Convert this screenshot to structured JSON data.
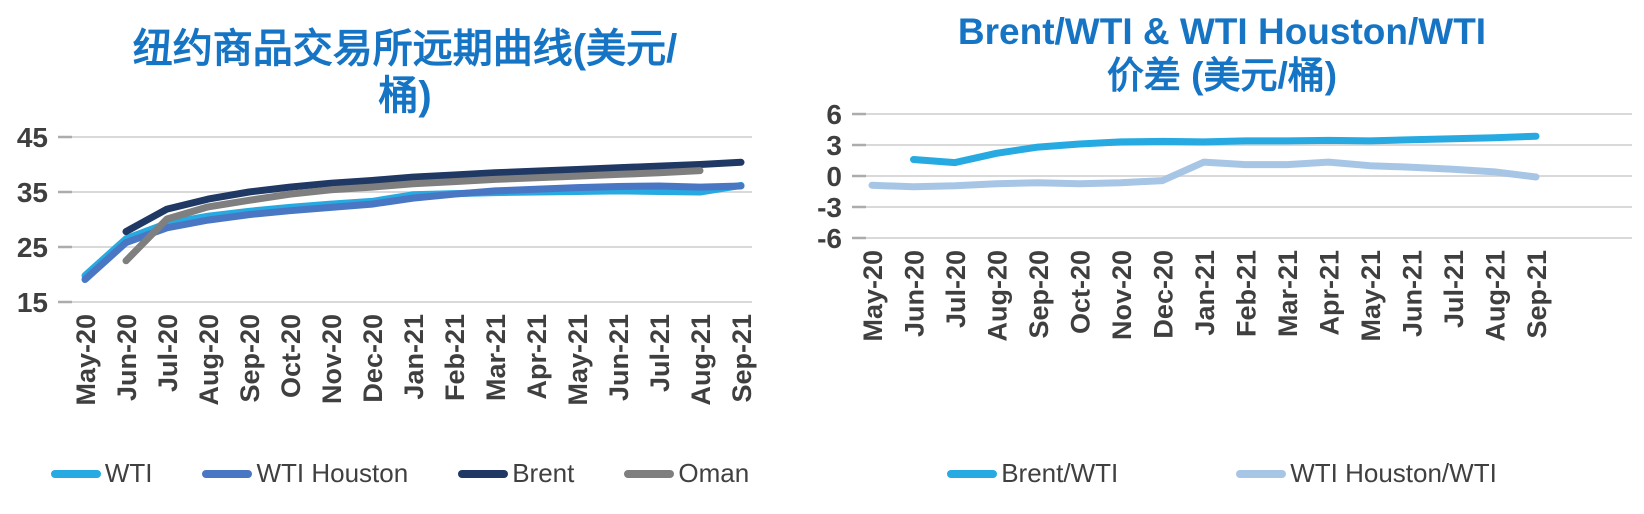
{
  "chart_data": [
    {
      "type": "line",
      "title": "纽约商品交易所远期曲线(美元/桶)",
      "title_lines": [
        "纽约商品交易所远期曲线(美元/",
        "桶)"
      ],
      "title_color": "#1674C4",
      "ylim": [
        15,
        45
      ],
      "y_ticks": [
        45,
        35,
        25,
        15
      ],
      "grid": true,
      "legend_position": "bottom",
      "categories": [
        "May-20",
        "Jun-20",
        "Jul-20",
        "Aug-20",
        "Sep-20",
        "Oct-20",
        "Nov-20",
        "Dec-20",
        "Jan-21",
        "Feb-21",
        "Mar-21",
        "Apr-21",
        "May-21",
        "Jun-21",
        "Jul-21",
        "Aug-21",
        "Sep-21"
      ],
      "series": [
        {
          "name": "WTI",
          "color": "#27AAE1",
          "values": [
            19.8,
            26.5,
            29.3,
            30.6,
            31.5,
            32.2,
            32.8,
            33.3,
            34.5,
            34.7,
            34.9,
            35.0,
            35.1,
            35.2,
            35.1,
            35.0,
            36.2
          ]
        },
        {
          "name": "WTI Houston",
          "color": "#4A77C4",
          "values": [
            19.1,
            25.8,
            28.5,
            29.9,
            30.9,
            31.6,
            32.2,
            32.8,
            33.9,
            34.6,
            35.2,
            35.5,
            35.8,
            36.0,
            36.1,
            35.9,
            36.1
          ]
        },
        {
          "name": "Brent",
          "color": "#1F3864",
          "values": [
            null,
            27.8,
            31.9,
            33.7,
            35.0,
            35.9,
            36.6,
            37.1,
            37.7,
            38.1,
            38.5,
            38.8,
            39.1,
            39.4,
            39.7,
            40.0,
            40.4
          ]
        },
        {
          "name": "Oman",
          "color": "#7F7F7F",
          "values": [
            null,
            22.5,
            30.1,
            32.3,
            33.5,
            34.6,
            35.4,
            35.9,
            36.5,
            36.9,
            37.3,
            37.6,
            37.9,
            38.2,
            38.5,
            38.9,
            null
          ]
        }
      ]
    },
    {
      "type": "line",
      "title": "Brent/WTI & WTI Houston/WTI 价差 (美元/桶)",
      "title_lines": [
        "Brent/WTI & WTI Houston/WTI",
        "价差 (美元/桶)"
      ],
      "title_color": "#1674C4",
      "ylim": [
        -6,
        6
      ],
      "y_ticks": [
        6,
        3,
        0,
        -3,
        -6
      ],
      "grid": true,
      "legend_position": "bottom",
      "categories": [
        "May-20",
        "Jun-20",
        "Jul-20",
        "Aug-20",
        "Sep-20",
        "Oct-20",
        "Nov-20",
        "Dec-20",
        "Jan-21",
        "Feb-21",
        "Mar-21",
        "Apr-21",
        "May-21",
        "Jun-21",
        "Jul-21",
        "Aug-21",
        "Sep-21"
      ],
      "series": [
        {
          "name": "Brent/WTI",
          "color": "#27AAE1",
          "values": [
            null,
            1.6,
            1.3,
            2.2,
            2.8,
            3.1,
            3.3,
            3.35,
            3.3,
            3.4,
            3.4,
            3.45,
            3.4,
            3.5,
            3.6,
            3.7,
            3.85
          ]
        },
        {
          "name": "WTI Houston/WTI",
          "color": "#A7C6E6",
          "values": [
            -0.9,
            -1.05,
            -0.95,
            -0.75,
            -0.65,
            -0.75,
            -0.65,
            -0.45,
            1.35,
            1.1,
            1.1,
            1.35,
            1.0,
            0.85,
            0.65,
            0.4,
            -0.1
          ]
        }
      ]
    }
  ],
  "style": {
    "gridline_color": "#D9D9D9",
    "tick_stub_color": "#ACACAC",
    "axis_text_color": "#3F3F3F",
    "line_width": 7
  }
}
